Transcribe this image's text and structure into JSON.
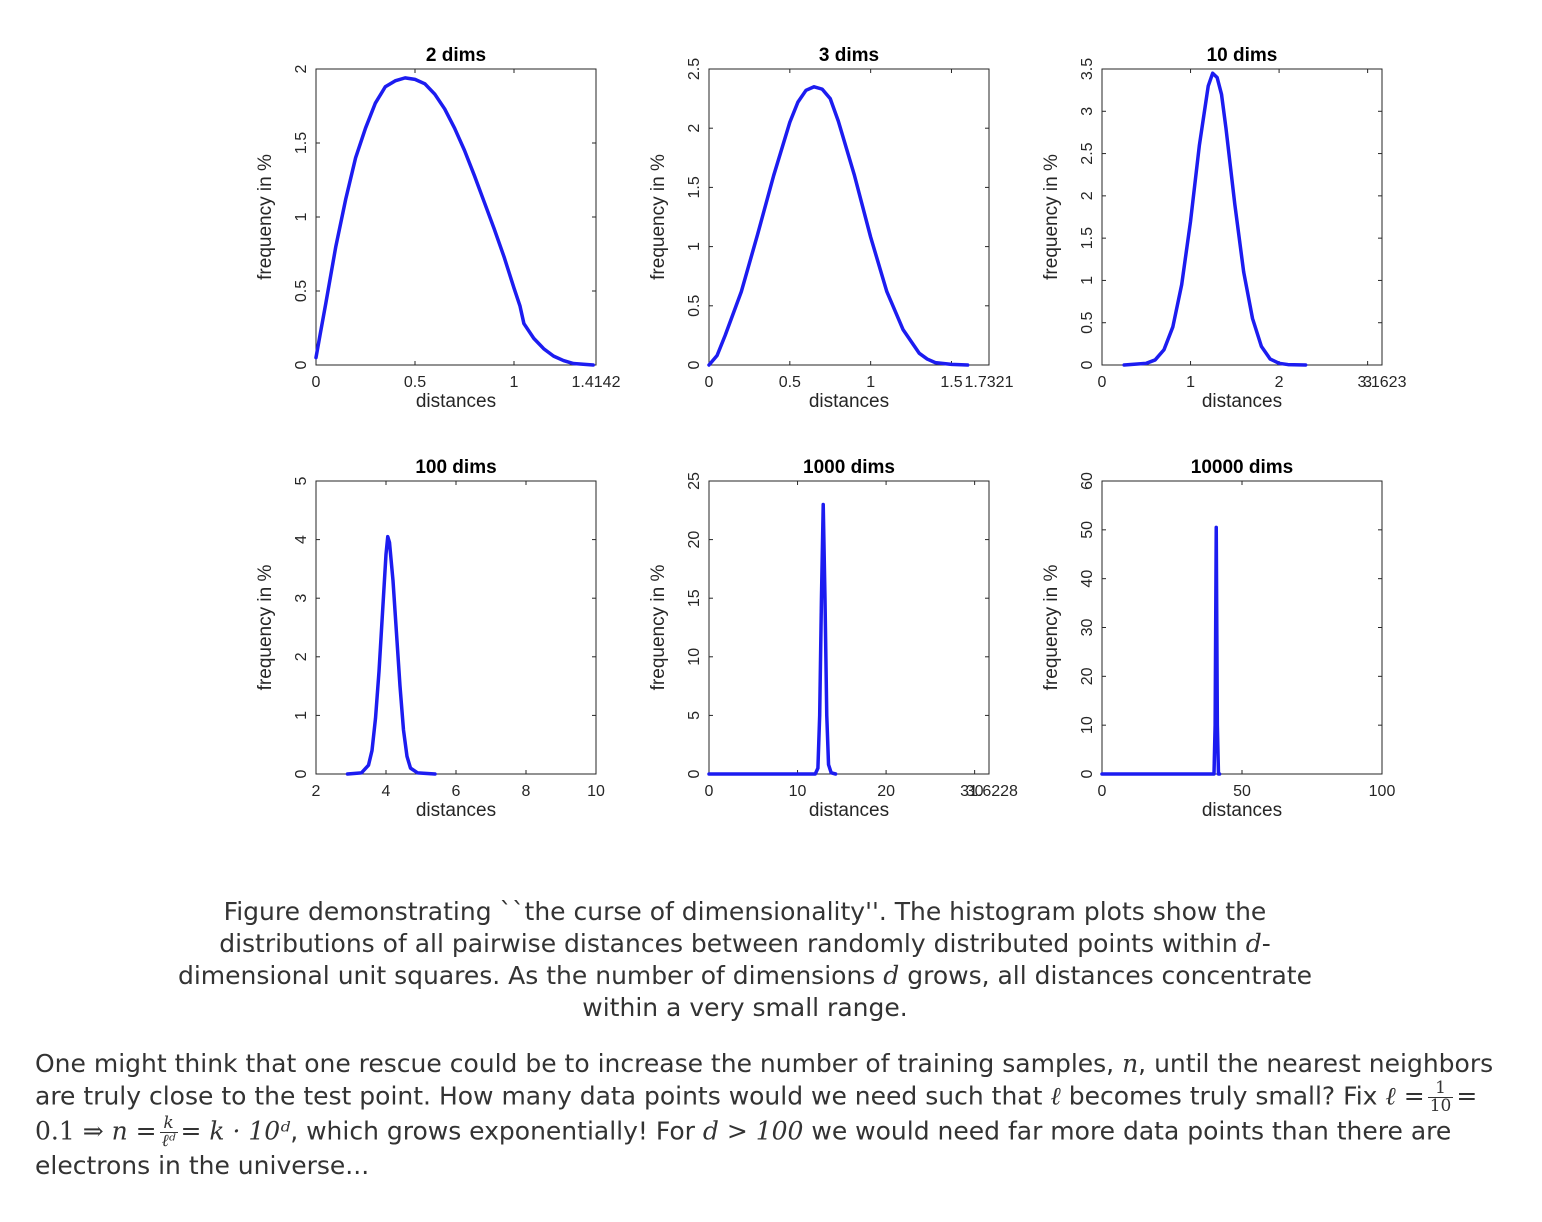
{
  "chart_data": [
    {
      "type": "line",
      "title": "2 dims",
      "xlabel": "distances",
      "ylabel": "frequency in %",
      "xlim": [
        0,
        1.4142
      ],
      "ylim": [
        0,
        2
      ],
      "xticks": [
        0,
        0.5,
        1,
        1.4142
      ],
      "xtick_labels": [
        "0",
        "0.5",
        "1",
        "1.4142"
      ],
      "yticks": [
        0,
        0.5,
        1,
        1.5,
        2
      ],
      "ytick_labels": [
        "0",
        "0.5",
        "1",
        "1.5",
        "2"
      ],
      "series": [
        {
          "color": "#1c1cf0",
          "x": [
            0,
            0.02,
            0.05,
            0.1,
            0.15,
            0.2,
            0.25,
            0.3,
            0.35,
            0.4,
            0.45,
            0.5,
            0.55,
            0.6,
            0.65,
            0.7,
            0.75,
            0.8,
            0.85,
            0.9,
            0.95,
            1.0,
            1.03,
            1.05,
            1.1,
            1.15,
            1.2,
            1.25,
            1.3,
            1.35,
            1.4
          ],
          "y": [
            0.05,
            0.2,
            0.42,
            0.8,
            1.12,
            1.4,
            1.6,
            1.77,
            1.88,
            1.92,
            1.94,
            1.93,
            1.9,
            1.83,
            1.73,
            1.6,
            1.45,
            1.28,
            1.1,
            0.92,
            0.73,
            0.52,
            0.4,
            0.28,
            0.18,
            0.11,
            0.06,
            0.03,
            0.01,
            0.005,
            0.0
          ]
        }
      ]
    },
    {
      "type": "line",
      "title": "3 dims",
      "xlabel": "distances",
      "ylabel": "frequency in %",
      "xlim": [
        0,
        1.7321
      ],
      "ylim": [
        0,
        2.5
      ],
      "xticks": [
        0,
        0.5,
        1,
        1.5,
        1.7321
      ],
      "xtick_labels": [
        "0",
        "0.5",
        "1",
        "1.5",
        "1.7321"
      ],
      "yticks": [
        0,
        0.5,
        1,
        1.5,
        2,
        2.5
      ],
      "ytick_labels": [
        "0",
        "0.5",
        "1",
        "1.5",
        "2",
        "2.5"
      ],
      "series": [
        {
          "color": "#1c1cf0",
          "x": [
            0,
            0.05,
            0.1,
            0.2,
            0.3,
            0.4,
            0.5,
            0.55,
            0.6,
            0.65,
            0.7,
            0.75,
            0.8,
            0.9,
            1.0,
            1.1,
            1.2,
            1.3,
            1.35,
            1.4,
            1.5,
            1.6
          ],
          "y": [
            0.0,
            0.08,
            0.25,
            0.62,
            1.1,
            1.6,
            2.05,
            2.22,
            2.32,
            2.35,
            2.33,
            2.25,
            2.06,
            1.6,
            1.08,
            0.62,
            0.3,
            0.1,
            0.05,
            0.02,
            0.005,
            0.0
          ]
        }
      ]
    },
    {
      "type": "line",
      "title": "10 dims",
      "xlabel": "distances",
      "ylabel": "frequency in %",
      "xlim": [
        0,
        3.1623
      ],
      "ylim": [
        0,
        3.5
      ],
      "xticks": [
        0,
        1,
        2,
        3,
        3.1623
      ],
      "xtick_labels": [
        "0",
        "1",
        "2",
        "3",
        "3.1623"
      ],
      "yticks": [
        0,
        0.5,
        1,
        1.5,
        2,
        2.5,
        3,
        3.5
      ],
      "ytick_labels": [
        "0",
        "0.5",
        "1",
        "1.5",
        "2",
        "2.5",
        "3",
        "3.5"
      ],
      "series": [
        {
          "color": "#1c1cf0",
          "x": [
            0.25,
            0.5,
            0.6,
            0.7,
            0.8,
            0.9,
            1.0,
            1.1,
            1.2,
            1.25,
            1.3,
            1.35,
            1.4,
            1.5,
            1.6,
            1.7,
            1.8,
            1.9,
            2.0,
            2.1,
            2.3
          ],
          "y": [
            0.0,
            0.02,
            0.06,
            0.18,
            0.45,
            0.95,
            1.7,
            2.6,
            3.3,
            3.45,
            3.4,
            3.2,
            2.8,
            1.9,
            1.1,
            0.55,
            0.22,
            0.07,
            0.02,
            0.005,
            0.0
          ]
        }
      ]
    },
    {
      "type": "line",
      "title": "100 dims",
      "xlabel": "distances",
      "ylabel": "frequency in %",
      "xlim": [
        2,
        10
      ],
      "ylim": [
        0,
        5
      ],
      "xticks": [
        2,
        4,
        6,
        8,
        10
      ],
      "xtick_labels": [
        "2",
        "4",
        "6",
        "8",
        "10"
      ],
      "yticks": [
        0,
        1,
        2,
        3,
        4,
        5
      ],
      "ytick_labels": [
        "0",
        "1",
        "2",
        "3",
        "4",
        "5"
      ],
      "series": [
        {
          "color": "#1c1cf0",
          "x": [
            2.9,
            3.3,
            3.5,
            3.6,
            3.7,
            3.8,
            3.9,
            4.0,
            4.05,
            4.1,
            4.2,
            4.3,
            4.4,
            4.5,
            4.6,
            4.7,
            4.9,
            5.4
          ],
          "y": [
            0.0,
            0.02,
            0.15,
            0.4,
            0.95,
            1.75,
            2.75,
            3.75,
            4.05,
            3.95,
            3.3,
            2.4,
            1.5,
            0.75,
            0.3,
            0.1,
            0.02,
            0.0
          ]
        }
      ]
    },
    {
      "type": "line",
      "title": "1000 dims",
      "xlabel": "distances",
      "ylabel": "frequency in %",
      "xlim": [
        0,
        31.6228
      ],
      "ylim": [
        0,
        25
      ],
      "xticks": [
        0,
        10,
        20,
        30,
        31.6228
      ],
      "xtick_labels": [
        "0",
        "10",
        "20",
        "30",
        "31.6228"
      ],
      "yticks": [
        0,
        5,
        10,
        15,
        20,
        25
      ],
      "ytick_labels": [
        "0",
        "5",
        "10",
        "15",
        "20",
        "25"
      ],
      "series": [
        {
          "color": "#1c1cf0",
          "x": [
            0,
            12.0,
            12.3,
            12.5,
            12.7,
            12.9,
            13.1,
            13.3,
            13.5,
            13.8,
            14.3
          ],
          "y": [
            0.0,
            0.0,
            0.5,
            5.0,
            15.0,
            23.0,
            15.0,
            5.0,
            0.8,
            0.1,
            0.0
          ]
        }
      ]
    },
    {
      "type": "line",
      "title": "10000 dims",
      "xlabel": "distances",
      "ylabel": "frequency in %",
      "xlim": [
        0,
        100
      ],
      "ylim": [
        0,
        60
      ],
      "xticks": [
        0,
        50,
        100
      ],
      "xtick_labels": [
        "0",
        "50",
        "100"
      ],
      "yticks": [
        0,
        10,
        20,
        30,
        40,
        50,
        60
      ],
      "ytick_labels": [
        "0",
        "10",
        "20",
        "30",
        "40",
        "50",
        "60"
      ],
      "series": [
        {
          "color": "#1c1cf0",
          "x": [
            0,
            40.0,
            40.4,
            40.8,
            41.2,
            41.6,
            42.0
          ],
          "y": [
            0.0,
            0.0,
            10.0,
            50.5,
            10.0,
            0.0,
            0.0
          ]
        }
      ]
    }
  ],
  "caption": {
    "part1": "Figure demonstrating ``the curse of dimensionality''. The histogram plots show the distributions of all pairwise distances between randomly distributed points within ",
    "d1": "d",
    "part2": "-dimensional unit squares. As the number of dimensions ",
    "d2": "d",
    "part3": " grows, all distances concentrate within a very small range."
  },
  "paragraph": {
    "p1": "One might think that one rescue could be to increase the number of training samples, ",
    "n": "n",
    "p2": ", until the nearest neighbors are truly close to the test point. How many data points would we need such that ",
    "ell": "ℓ",
    "p3": " becomes truly small? Fix ",
    "ell_eq": "ℓ =",
    "frac1_num": "1",
    "frac1_den": "10",
    "eq2": "= 0.1 ⇒",
    "n_eq": "n =",
    "frac2_num": "k",
    "frac2_den": "ℓᵈ",
    "eq3": "= k · 10ᵈ",
    "p4": ", which grows exponentially! For ",
    "cond": "d > 100",
    "p5": " we would need far more data points than there are electrons in the universe..."
  }
}
